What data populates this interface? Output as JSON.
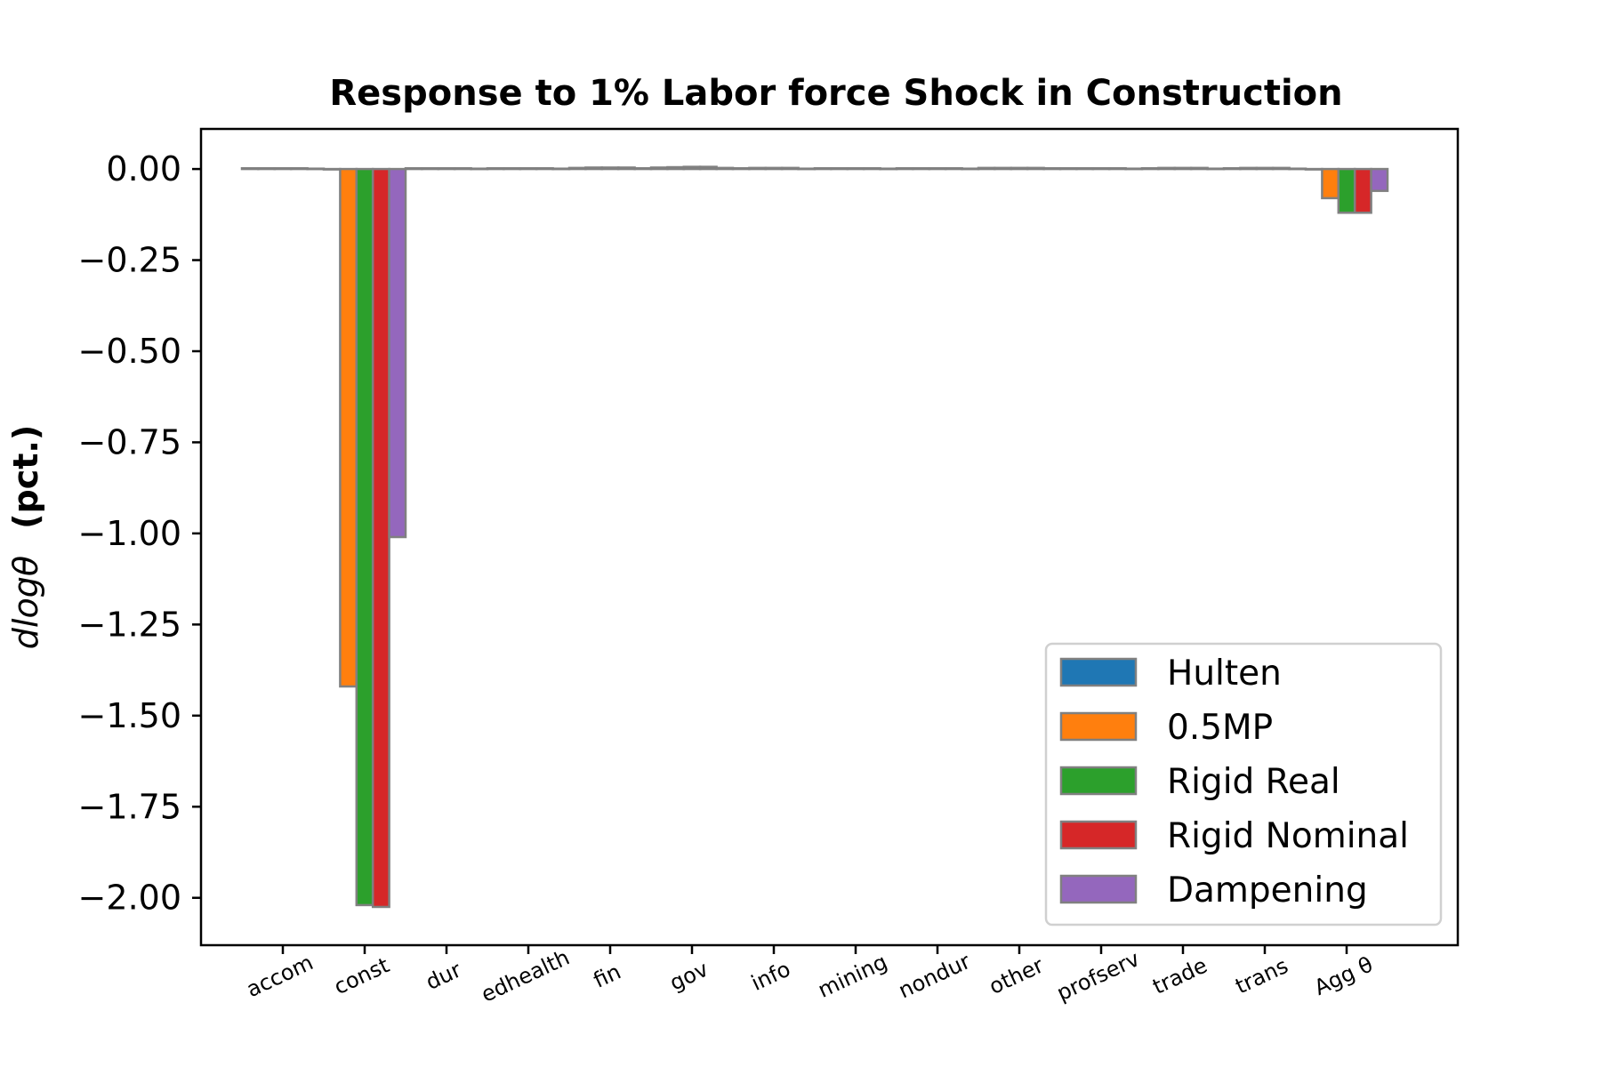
{
  "chart_data": {
    "type": "bar",
    "title": "Response to 1% Labor force Shock in Construction",
    "ylabel": "d log θ (pct.)",
    "ylabel_parts": {
      "math": "dlogθ",
      "bold": "(pct.)"
    },
    "xlabel": "",
    "categories": [
      "accom",
      "const",
      "dur",
      "edhealth",
      "fin",
      "gov",
      "info",
      "mining",
      "nondur",
      "other",
      "profserv",
      "trade",
      "trans",
      "Agg θ"
    ],
    "series": [
      {
        "name": "Hulten",
        "color": "#1f77b4",
        "values": [
          0.002,
          0.0,
          0.002,
          0.002,
          0.003,
          0.004,
          0.002,
          0.002,
          0.002,
          0.003,
          0.002,
          0.002,
          0.002,
          0.0
        ]
      },
      {
        "name": "0.5MP",
        "color": "#ff7f0e",
        "values": [
          0.002,
          -1.42,
          0.002,
          0.002,
          0.004,
          0.005,
          0.003,
          0.002,
          0.002,
          0.003,
          0.002,
          0.003,
          0.003,
          -0.08
        ]
      },
      {
        "name": "Rigid Real",
        "color": "#2ca02c",
        "values": [
          0.002,
          -2.02,
          0.002,
          0.002,
          0.004,
          0.006,
          0.003,
          0.002,
          0.002,
          0.003,
          0.002,
          0.003,
          0.003,
          -0.12
        ]
      },
      {
        "name": "Rigid Nominal",
        "color": "#d62728",
        "values": [
          0.002,
          -2.025,
          0.002,
          0.002,
          0.004,
          0.006,
          0.003,
          0.002,
          0.002,
          0.003,
          0.002,
          0.003,
          0.003,
          -0.12
        ]
      },
      {
        "name": "Dampening",
        "color": "#9467bd",
        "values": [
          0.001,
          -1.01,
          0.001,
          0.001,
          0.002,
          0.003,
          0.001,
          0.001,
          0.001,
          0.002,
          0.001,
          0.001,
          0.001,
          -0.06
        ]
      }
    ],
    "yticks": [
      0.0,
      -0.25,
      -0.5,
      -0.75,
      -1.0,
      -1.25,
      -1.5,
      -1.75,
      -2.0
    ],
    "ytick_labels": [
      "0.00",
      "−0.25",
      "−0.50",
      "−0.75",
      "−1.00",
      "−1.25",
      "−1.50",
      "−1.75",
      "−2.00"
    ],
    "ylim": [
      -2.13,
      0.11
    ],
    "grid": false,
    "legend_position": "lower-right",
    "bar_edge_color": "#808080"
  }
}
